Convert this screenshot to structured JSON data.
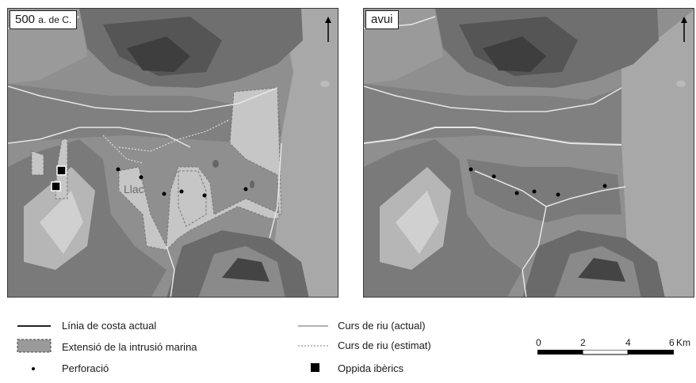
{
  "maps": {
    "left": {
      "period_main": "500",
      "period_suffix": "a. de C.",
      "lake_label": "Llac"
    },
    "right": {
      "period_main": "avui"
    }
  },
  "legend": {
    "coastline": "Línia de costa actual",
    "marine_intrusion": "Extensió de la intrusió marina",
    "borehole": "Perforació",
    "river_actual": "Curs de riu (actual)",
    "river_estimated": "Curs de riu (estimat)",
    "oppida": "Oppida ibèrics"
  },
  "scale_bar": {
    "ticks": [
      "0",
      "2",
      "4",
      "6"
    ],
    "unit": "Km"
  },
  "north_arrow_icon": "north-arrow-icon",
  "colors": {
    "sea": "#a9a9a9",
    "plain": "#8e8e8e",
    "relief_dark": "#4a4a4a",
    "intrusion": "#c4c4c4",
    "river": "#e6e6e6"
  }
}
